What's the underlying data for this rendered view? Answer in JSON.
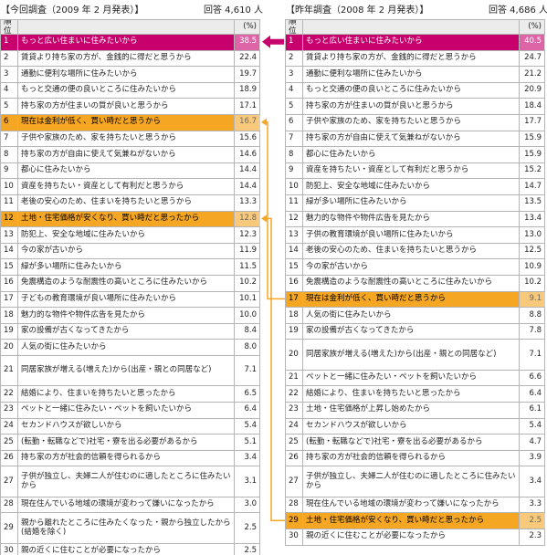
{
  "left": {
    "title": "【今回調査（2009 年 2 月発表）】",
    "respondents": "回答 4,610 人",
    "columns": {
      "rank": "順位",
      "pct": "(%)"
    },
    "rows": [
      {
        "rank": 1,
        "reason": "もっと広い住まいに住みたいから",
        "pct": "38.5",
        "highlight": "#c8006e",
        "text_color": "#ffffff"
      },
      {
        "rank": 2,
        "reason": "賃貸より持ち家の方が、金銭的に得だと思うから",
        "pct": "22.4"
      },
      {
        "rank": 3,
        "reason": "通勤に便利な場所に住みたいから",
        "pct": "19.7"
      },
      {
        "rank": 4,
        "reason": "もっと交通の便の良いところに住みたいから",
        "pct": "18.9"
      },
      {
        "rank": 5,
        "reason": "持ち家の方が住まいの質が良いと思うから",
        "pct": "17.1"
      },
      {
        "rank": 6,
        "reason": "現在は金利が低く、買い時だと思うから",
        "pct": "16.7",
        "highlight": "#f5a623",
        "text_color": "#000000"
      },
      {
        "rank": 7,
        "reason": "子供や家族のため、家を持ちたいと思うから",
        "pct": "15.6"
      },
      {
        "rank": 8,
        "reason": "持ち家の方が自由に使えて気兼ねがないから",
        "pct": "14.6"
      },
      {
        "rank": 9,
        "reason": "都心に住みたいから",
        "pct": "14.4"
      },
      {
        "rank": 10,
        "reason": "資産を持ちたい・資産として有利だと思うから",
        "pct": "14.4"
      },
      {
        "rank": 11,
        "reason": "老後の安心のため、住まいを持ちたいと思うから",
        "pct": "13.3"
      },
      {
        "rank": 12,
        "reason": "土地・住宅価格が安くなり、買い時だと思ったから",
        "pct": "12.8",
        "highlight": "#f5a623",
        "text_color": "#000000"
      },
      {
        "rank": 13,
        "reason": "防犯上、安全な地域に住みたいから",
        "pct": "12.3"
      },
      {
        "rank": 14,
        "reason": "今の家が古いから",
        "pct": "11.9"
      },
      {
        "rank": 15,
        "reason": "緑が多い場所に住みたいから",
        "pct": "11.5"
      },
      {
        "rank": 16,
        "reason": "免震構造のような耐震性の高いところに住みたいから",
        "pct": "10.2"
      },
      {
        "rank": 17,
        "reason": "子どもの教育環境が良い場所に住みたいから",
        "pct": "10.1"
      },
      {
        "rank": 18,
        "reason": "魅力的な物件や物件広告を見たから",
        "pct": "10.0"
      },
      {
        "rank": 19,
        "reason": "家の設備が古くなってきたから",
        "pct": "8.4"
      },
      {
        "rank": 20,
        "reason": "人気の街に住みたいから",
        "pct": "8.0"
      },
      {
        "rank": 21,
        "reason": "同居家族が増える(増えた)から(出産・親との同居など)",
        "pct": "7.1"
      },
      {
        "rank": 22,
        "reason": "結婚により、住まいを持ちたいと思ったから",
        "pct": "6.5"
      },
      {
        "rank": 23,
        "reason": "ペットと一緒に住みたい・ペットを飼いたいから",
        "pct": "6.4"
      },
      {
        "rank": 24,
        "reason": "セカンドハウスが欲しいから",
        "pct": "5.4"
      },
      {
        "rank": 25,
        "reason": "(転勤・転職などで)社宅・寮を出る必要があるから",
        "pct": "5.1"
      },
      {
        "rank": 26,
        "reason": "持ち家の方が社会的信頼を得られるから",
        "pct": "3.4"
      },
      {
        "rank": 27,
        "reason": "子供が独立し、夫婦二人が住むのに適したところに住みたいから",
        "pct": "3.1"
      },
      {
        "rank": 28,
        "reason": "現在住んでいる地域の環境が変わって嫌いになったから",
        "pct": "3.0"
      },
      {
        "rank": 29,
        "reason": "親から離れたところに住みたくなった・親から独立したから(結婚を除く)",
        "pct": "2.5"
      },
      {
        "rank": 30,
        "reason": "親の近くに住むことが必要になったから",
        "pct": "2.5"
      }
    ]
  },
  "right": {
    "title": "【昨年調査（2008 年 2 月発表）】",
    "respondents": "回答 4,686 人",
    "columns": {
      "rank": "順位",
      "pct": "(%)"
    },
    "rows": [
      {
        "rank": 1,
        "reason": "もっと広い住まいに住みたいから",
        "pct": "40.5",
        "highlight": "#c8006e",
        "text_color": "#ffffff"
      },
      {
        "rank": 2,
        "reason": "賃貸より持ち家の方が、金銭的に得だと思うから",
        "pct": "24.7"
      },
      {
        "rank": 3,
        "reason": "通勤に便利な場所に住みたいから",
        "pct": "21.2"
      },
      {
        "rank": 4,
        "reason": "もっと交通の便の良いところに住みたいから",
        "pct": "20.9"
      },
      {
        "rank": 5,
        "reason": "持ち家の方が住まいの質が良いと思うから",
        "pct": "18.4"
      },
      {
        "rank": 6,
        "reason": "子供や家族のため、家を持ちたいと思うから",
        "pct": "17.7"
      },
      {
        "rank": 7,
        "reason": "持ち家の方が自由に使えて気兼ねがないから",
        "pct": "15.9"
      },
      {
        "rank": 8,
        "reason": "都心に住みたいから",
        "pct": "15.9"
      },
      {
        "rank": 9,
        "reason": "資産を持ちたい・資産として有利だと思うから",
        "pct": "15.2"
      },
      {
        "rank": 10,
        "reason": "防犯上、安全な地域に住みたいから",
        "pct": "14.7"
      },
      {
        "rank": 11,
        "reason": "緑が多い場所に住みたいから",
        "pct": "13.5"
      },
      {
        "rank": 12,
        "reason": "魅力的な物件や物件広告を見たから",
        "pct": "13.4"
      },
      {
        "rank": 13,
        "reason": "子供の教育環境が良い場所に住みたいから",
        "pct": "13.0"
      },
      {
        "rank": 14,
        "reason": "老後の安心のため、住まいを持ちたいと思うから",
        "pct": "12.5"
      },
      {
        "rank": 15,
        "reason": "今の家が古いから",
        "pct": "10.9"
      },
      {
        "rank": 16,
        "reason": "免震構造のような耐震性の高いところに住みたいから",
        "pct": "10.2"
      },
      {
        "rank": 17,
        "reason": "現在は金利が低く、買い時だと思うから",
        "pct": "9.1",
        "highlight": "#f5a623",
        "text_color": "#000000"
      },
      {
        "rank": 18,
        "reason": "人気の街に住みたいから",
        "pct": "8.8"
      },
      {
        "rank": 19,
        "reason": "家の設備が古くなってきたから",
        "pct": "7.8"
      },
      {
        "rank": 20,
        "reason": "同居家族が増える(増えた)から(出産・親との同居など)",
        "pct": "7.1"
      },
      {
        "rank": 21,
        "reason": "ペットと一緒に住みたい・ペットを飼いたいから",
        "pct": "6.6"
      },
      {
        "rank": 22,
        "reason": "結婚により、住まいを持ちたいと思ったから",
        "pct": "6.4"
      },
      {
        "rank": 23,
        "reason": "土地・住宅価格が上昇し始めたから",
        "pct": "6.1"
      },
      {
        "rank": 24,
        "reason": "セカンドハウスが欲しいから",
        "pct": "5.4"
      },
      {
        "rank": 25,
        "reason": "(転勤・転職などで)社宅・寮を出る必要があるから",
        "pct": "4.7"
      },
      {
        "rank": 26,
        "reason": "持ち家の方が社会的信頼を得られるから",
        "pct": "3.9"
      },
      {
        "rank": 27,
        "reason": "子供が独立し、夫婦二人が住むのに適したところに住みたいから",
        "pct": "3.4"
      },
      {
        "rank": 28,
        "reason": "現在住んでいる地域の環境が変わって嫌いになったから",
        "pct": "3.3"
      },
      {
        "rank": 29,
        "reason": "土地・住宅価格が安くなり、買い時だと思ったから",
        "pct": "2.5",
        "highlight": "#f5a623",
        "text_color": "#000000"
      },
      {
        "rank": 30,
        "reason": "親の近くに住むことが必要になったから",
        "pct": "2.3"
      }
    ]
  }
}
